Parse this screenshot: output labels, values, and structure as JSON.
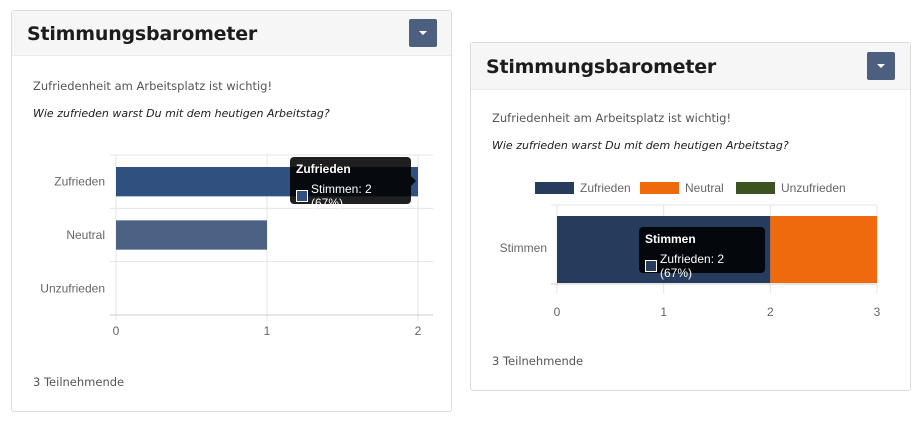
{
  "widgets": [
    {
      "title": "Stimmungsbarometer",
      "intro": "Zufriedenheit am Arbeitsplatz ist wichtig!",
      "question": "Wie zufrieden warst Du mit dem heutigen Arbeitstag?",
      "participants": "3 Teilnehmende",
      "tooltip": {
        "title": "Zufrieden",
        "line": "Stimmen: 2 (67%)",
        "swatch": "#30507f"
      }
    },
    {
      "title": "Stimmungsbarometer",
      "intro": "Zufriedenheit am Arbeitsplatz ist wichtig!",
      "question": "Wie zufrieden warst Du mit dem heutigen Arbeitstag?",
      "participants": "3 Teilnehmende",
      "tooltip": {
        "title": "Stimmen",
        "line": "Zufrieden: 2 (67%)",
        "swatch": "#263c5c"
      }
    }
  ],
  "chart_data": [
    {
      "type": "bar",
      "orientation": "horizontal",
      "categories": [
        "Zufrieden",
        "Neutral",
        "Unzufrieden"
      ],
      "series": [
        {
          "name": "Stimmen",
          "values": [
            2,
            1,
            0
          ],
          "colors": [
            "#30507f",
            "#4c6285",
            "#4c6285"
          ]
        }
      ],
      "xlim": [
        0,
        2
      ],
      "xticks": [
        "0",
        "1",
        "2"
      ],
      "grid": true,
      "legend": "none"
    },
    {
      "type": "bar",
      "orientation": "horizontal",
      "stacked": true,
      "categories": [
        "Stimmen"
      ],
      "series": [
        {
          "name": "Zufrieden",
          "values": [
            2
          ],
          "color": "#263c5c"
        },
        {
          "name": "Neutral",
          "values": [
            1
          ],
          "color": "#ef6a0c"
        },
        {
          "name": "Unzufrieden",
          "values": [
            0
          ],
          "color": "#3c5321"
        }
      ],
      "xlim": [
        0,
        3
      ],
      "xticks": [
        "0",
        "1",
        "2",
        "3"
      ],
      "grid": true,
      "legend": "top"
    }
  ]
}
